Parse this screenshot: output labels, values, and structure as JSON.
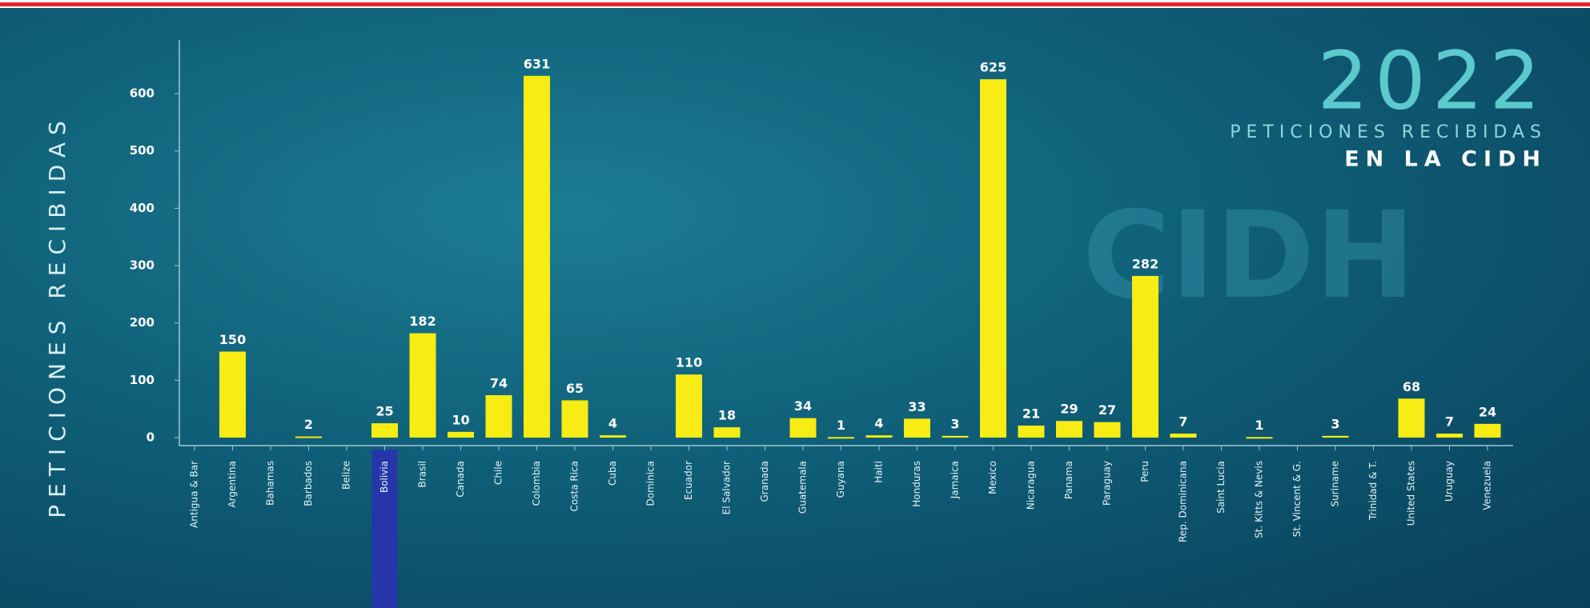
{
  "chart_data": {
    "type": "bar",
    "title": "2022",
    "subtitle": "PETICIONES RECIBIDAS",
    "subtitle2": "EN LA CIDH",
    "watermark": "CIDH",
    "y_label": "PETICIONES RECIBIDAS",
    "categories": [
      "Antigua & Bar",
      "Argentina",
      "Bahamas",
      "Barbados",
      "Belize",
      "Bolivia",
      "Brasil",
      "Canada",
      "Chile",
      "Colombia",
      "Costa Rica",
      "Cuba",
      "Dominica",
      "Ecuador",
      "El Salvador",
      "Granada",
      "Guatemala",
      "Guyana",
      "Haiti",
      "Honduras",
      "Jamaica",
      "Mexico",
      "Nicaragua",
      "Panama",
      "Paraguay",
      "Peru",
      "Rep. Dominicana",
      "Saint Lucia",
      "St. Kitts & Nevis",
      "St. Vincent & G.",
      "Suriname",
      "Trinidad & T.",
      "United States",
      "Uruguay",
      "Venezuela"
    ],
    "values": [
      null,
      150,
      null,
      2,
      null,
      25,
      182,
      10,
      74,
      631,
      65,
      4,
      null,
      110,
      18,
      null,
      34,
      1,
      4,
      33,
      3,
      625,
      21,
      29,
      27,
      282,
      7,
      null,
      1,
      null,
      3,
      null,
      68,
      7,
      24
    ],
    "color": "#f7ec13",
    "highlight": {
      "category": "Bolivia",
      "color": "#2636a8"
    },
    "ylim": [
      0,
      680
    ],
    "yticks": [
      0,
      100,
      200,
      300,
      400,
      500,
      600
    ],
    "grid": false
  }
}
